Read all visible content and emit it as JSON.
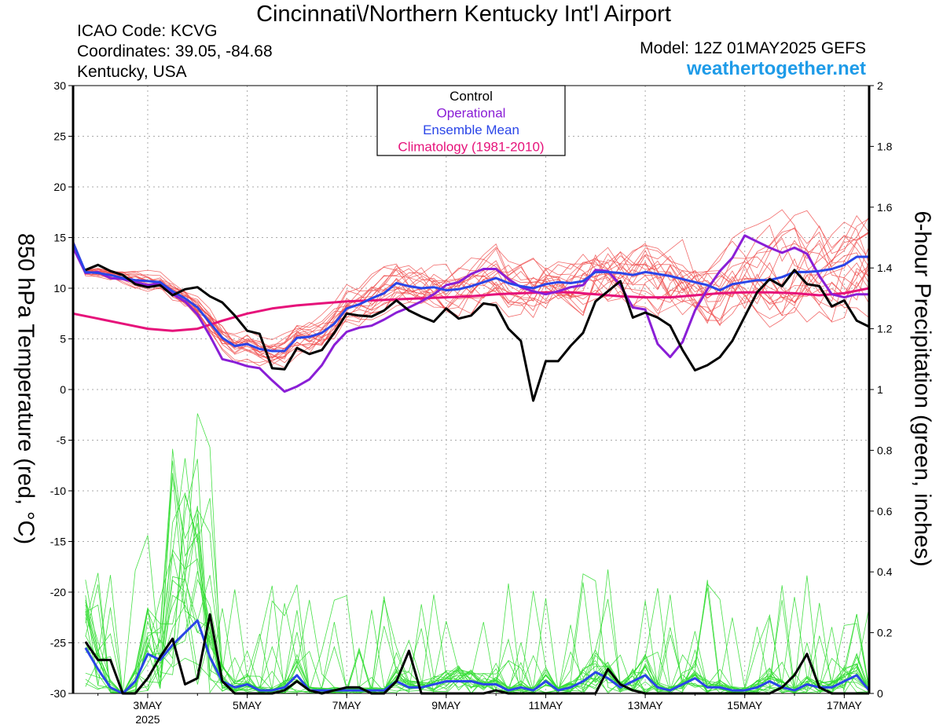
{
  "title": "Cincinnati\\/Northern Kentucky Int'l Airport",
  "info": {
    "icao": "ICAO Code: KCVG",
    "coords": "Coordinates: 39.05, -84.68",
    "region": "Kentucky, USA"
  },
  "model": "Model: 12Z 01MAY2025 GEFS",
  "site": "weathertogether.net",
  "chart_data": {
    "type": "line",
    "ylabel": "850 hPa Temperature (red, °C)",
    "y2label": "6-hour Precipitation (green, inches)",
    "ylim": [
      -30,
      30
    ],
    "y2lim": [
      0,
      2
    ],
    "yticks": [
      "30",
      "25",
      "20",
      "15",
      "10",
      "5",
      "0",
      "-5",
      "-10",
      "-15",
      "-20",
      "-25",
      "-30"
    ],
    "y2ticks": [
      "2",
      "1.8",
      "1.6",
      "1.4",
      "1.2",
      "1",
      "0.8",
      "0.6",
      "0.4",
      "0.2",
      "0"
    ],
    "xlim_days": [
      1.5,
      17.5
    ],
    "xticks": [
      {
        "day": 3,
        "label": "3MAY",
        "sub": "2025"
      },
      {
        "day": 5,
        "label": "5MAY",
        "sub": ""
      },
      {
        "day": 7,
        "label": "7MAY",
        "sub": ""
      },
      {
        "day": 9,
        "label": "9MAY",
        "sub": ""
      },
      {
        "day": 11,
        "label": "11MAY",
        "sub": ""
      },
      {
        "day": 13,
        "label": "13MAY",
        "sub": ""
      },
      {
        "day": 15,
        "label": "15MAY",
        "sub": ""
      },
      {
        "day": 17,
        "label": "17MAY",
        "sub": ""
      }
    ],
    "grid": true,
    "legend": {
      "placement": "top-center",
      "items": [
        {
          "label": "Control",
          "color": "#000000"
        },
        {
          "label": "Operational",
          "color": "#8a1ed6"
        },
        {
          "label": "Ensemble Mean",
          "color": "#2a45e8"
        },
        {
          "label": "Climatology (1981-2010)",
          "color": "#e6127a"
        }
      ]
    },
    "colors": {
      "member_temp": "#f05050",
      "member_precip": "#33dd33"
    },
    "series": [
      {
        "name": "Control",
        "kind": "temperature",
        "color": "#000000",
        "x": [
          1.75,
          2.0,
          2.25,
          2.5,
          2.75,
          3.0,
          3.25,
          3.5,
          3.75,
          4.0,
          4.25,
          4.5,
          4.75,
          5.0,
          5.25,
          5.5,
          5.75,
          6.0,
          6.25,
          6.5,
          6.75,
          7.0,
          7.25,
          7.5,
          7.75,
          8.0,
          8.25,
          8.5,
          8.75,
          9.0,
          9.25,
          9.5,
          9.75,
          10.0,
          10.25,
          10.5,
          10.75,
          11.0,
          11.25,
          11.5,
          11.75,
          12.0,
          12.25,
          12.5,
          12.75,
          13.0,
          13.25,
          13.5,
          13.75,
          14.0,
          14.25,
          14.5,
          14.75,
          15.0,
          15.25,
          15.5,
          15.75,
          16.0,
          16.25,
          16.5,
          16.75,
          17.0,
          17.25,
          17.5
        ],
        "y": [
          11.8,
          12.3,
          11.7,
          11.3,
          10.4,
          10.1,
          10.3,
          9.3,
          9.9,
          10.1,
          9.2,
          8.6,
          7.3,
          5.8,
          5.5,
          2.1,
          2.0,
          4.1,
          3.5,
          3.9,
          5.6,
          7.5,
          7.3,
          7.2,
          7.8,
          8.8,
          7.8,
          7.2,
          6.7,
          8.0,
          7.0,
          7.3,
          8.5,
          8.3,
          6.0,
          4.8,
          -1.1,
          2.8,
          2.8,
          4.3,
          5.6,
          8.7,
          9.7,
          10.7,
          7.1,
          7.6,
          7.1,
          6.3,
          3.9,
          1.9,
          2.4,
          3.2,
          4.8,
          7.2,
          9.6,
          10.9,
          10.2,
          11.8,
          10.4,
          10.2,
          8.2,
          8.8,
          6.8,
          6.2
        ]
      },
      {
        "name": "Operational",
        "kind": "temperature",
        "color": "#8a1ed6",
        "x": [
          1.5,
          1.75,
          2.0,
          2.25,
          2.5,
          2.75,
          3.0,
          3.25,
          3.5,
          3.75,
          4.0,
          4.25,
          4.5,
          4.75,
          5.0,
          5.25,
          5.5,
          5.75,
          6.0,
          6.25,
          6.5,
          6.75,
          7.0,
          7.25,
          7.5,
          7.75,
          8.0,
          8.25,
          8.5,
          8.75,
          9.0,
          9.25,
          9.5,
          9.75,
          10.0,
          10.25,
          10.5,
          10.75,
          11.0,
          11.25,
          11.5,
          11.75,
          12.0,
          12.25,
          12.5,
          12.75,
          13.0,
          13.25,
          13.5,
          13.75,
          14.0,
          14.25,
          14.5,
          14.75,
          15.0,
          15.25,
          15.5,
          15.75,
          16.0,
          16.25,
          16.5,
          16.75,
          17.0,
          17.25,
          17.5
        ],
        "y": [
          14.0,
          11.5,
          11.6,
          11.0,
          10.9,
          10.6,
          10.3,
          10.5,
          9.4,
          8.7,
          7.4,
          5.3,
          3.0,
          2.7,
          2.3,
          2.1,
          0.9,
          -0.2,
          0.3,
          1.0,
          2.4,
          4.4,
          5.7,
          6.1,
          6.3,
          6.9,
          7.6,
          8.1,
          8.7,
          9.4,
          10.3,
          10.6,
          11.4,
          11.9,
          11.9,
          10.9,
          10.1,
          9.7,
          9.4,
          9.7,
          10.1,
          10.3,
          11.8,
          11.7,
          10.3,
          8.1,
          7.9,
          4.5,
          3.2,
          4.7,
          7.8,
          9.9,
          11.7,
          13.0,
          15.2,
          14.6,
          14.0,
          13.5,
          14.0,
          13.4,
          11.2,
          9.4,
          9.1,
          9.4,
          9.4
        ]
      },
      {
        "name": "Ensemble Mean",
        "kind": "temperature",
        "color": "#2a45e8",
        "x": [
          1.5,
          1.75,
          2.0,
          2.25,
          2.5,
          2.75,
          3.0,
          3.25,
          3.5,
          3.75,
          4.0,
          4.25,
          4.5,
          4.75,
          5.0,
          5.25,
          5.5,
          5.75,
          6.0,
          6.25,
          6.5,
          6.75,
          7.0,
          7.25,
          7.5,
          7.75,
          8.0,
          8.25,
          8.5,
          8.75,
          9.0,
          9.25,
          9.5,
          9.75,
          10.0,
          10.25,
          10.5,
          10.75,
          11.0,
          11.25,
          11.5,
          11.75,
          12.0,
          12.25,
          12.5,
          12.75,
          13.0,
          13.25,
          13.5,
          13.75,
          14.0,
          14.25,
          14.5,
          14.75,
          15.0,
          15.25,
          15.5,
          15.75,
          16.0,
          16.25,
          16.5,
          16.75,
          17.0,
          17.25,
          17.5
        ],
        "y": [
          14.5,
          11.6,
          11.5,
          11.3,
          11.0,
          10.8,
          10.7,
          10.6,
          9.7,
          9.0,
          8.1,
          6.6,
          5.1,
          4.3,
          4.5,
          4.0,
          3.8,
          3.8,
          5.1,
          5.2,
          5.6,
          6.5,
          8.0,
          8.4,
          9.0,
          9.5,
          10.5,
          10.2,
          10.0,
          10.1,
          9.8,
          9.9,
          10.2,
          10.6,
          11.0,
          10.5,
          10.2,
          10.0,
          10.4,
          10.6,
          10.5,
          10.7,
          11.6,
          11.6,
          11.5,
          11.3,
          11.6,
          11.4,
          11.2,
          10.9,
          10.6,
          10.3,
          9.8,
          10.4,
          10.6,
          10.8,
          10.8,
          11.1,
          11.6,
          11.6,
          11.7,
          11.9,
          12.3,
          13.1,
          13.1
        ]
      },
      {
        "name": "Climatology (1981-2010)",
        "kind": "temperature",
        "color": "#e6127a",
        "x": [
          1.5,
          2.0,
          2.5,
          3.0,
          3.5,
          4.0,
          4.5,
          5.0,
          5.5,
          6.0,
          6.5,
          7.0,
          7.5,
          8.0,
          8.5,
          9.0,
          9.5,
          10.0,
          10.5,
          11.0,
          11.5,
          12.0,
          12.5,
          13.0,
          13.5,
          14.0,
          14.5,
          15.0,
          15.5,
          16.0,
          16.5,
          17.0,
          17.5
        ],
        "y": [
          7.5,
          7.0,
          6.5,
          6.0,
          5.8,
          6.0,
          6.8,
          7.5,
          8.0,
          8.3,
          8.5,
          8.7,
          8.8,
          8.9,
          9.0,
          9.1,
          9.2,
          9.4,
          9.5,
          9.6,
          9.6,
          9.4,
          9.2,
          9.1,
          9.1,
          9.3,
          9.5,
          9.6,
          9.6,
          9.5,
          9.3,
          9.5,
          10.0
        ]
      },
      {
        "name": "Control",
        "kind": "precipitation",
        "color": "#000000",
        "x": [
          1.75,
          2.0,
          2.25,
          2.5,
          2.75,
          3.0,
          3.25,
          3.5,
          3.75,
          4.0,
          4.25,
          4.5,
          4.75,
          5.0,
          5.25,
          5.5,
          5.75,
          6.0,
          6.25,
          6.5,
          6.75,
          7.0,
          7.25,
          7.5,
          7.75,
          8.0,
          8.25,
          8.5,
          8.75,
          9.0,
          9.25,
          9.5,
          9.75,
          10.0,
          10.25,
          10.5,
          10.75,
          11.0,
          11.25,
          11.5,
          11.75,
          12.0,
          12.25,
          12.5,
          12.75,
          13.0,
          13.25,
          13.5,
          13.75,
          14.0,
          14.25,
          14.5,
          14.75,
          15.0,
          15.25,
          15.5,
          15.75,
          16.0,
          16.25,
          16.5,
          16.75,
          17.0,
          17.25,
          17.5
        ],
        "y": [
          0.17,
          0.11,
          0.11,
          0.0,
          0.0,
          0.05,
          0.12,
          0.18,
          0.03,
          0.05,
          0.26,
          0.04,
          0.0,
          0.0,
          0.0,
          0.0,
          0.01,
          0.04,
          0.01,
          0.0,
          0.01,
          0.02,
          0.02,
          0.0,
          0.0,
          0.04,
          0.14,
          0.0,
          0.0,
          0.0,
          0.0,
          0.0,
          0.0,
          0.01,
          0.0,
          0.0,
          0.0,
          0.0,
          0.0,
          0.0,
          0.0,
          0.0,
          0.08,
          0.03,
          0.01,
          0.0,
          0.0,
          0.0,
          0.0,
          0.0,
          0.0,
          0.0,
          0.0,
          0.0,
          0.0,
          0.0,
          0.02,
          0.06,
          0.13,
          0.02,
          0.0,
          0.0,
          0.0,
          0.0
        ]
      },
      {
        "name": "Ensemble Mean",
        "kind": "precipitation",
        "color": "#2a45e8",
        "x": [
          1.75,
          2.0,
          2.25,
          2.5,
          2.75,
          3.0,
          3.25,
          3.5,
          3.75,
          4.0,
          4.25,
          4.5,
          4.75,
          5.0,
          5.25,
          5.5,
          5.75,
          6.0,
          6.25,
          6.5,
          6.75,
          7.0,
          7.25,
          7.5,
          7.75,
          8.0,
          8.25,
          8.5,
          8.75,
          9.0,
          9.25,
          9.5,
          9.75,
          10.0,
          10.25,
          10.5,
          10.75,
          11.0,
          11.25,
          11.5,
          11.75,
          12.0,
          12.25,
          12.5,
          12.75,
          13.0,
          13.25,
          13.5,
          13.75,
          14.0,
          14.25,
          14.5,
          14.75,
          15.0,
          15.25,
          15.5,
          15.75,
          16.0,
          16.25,
          16.5,
          16.75,
          17.0,
          17.25,
          17.5
        ],
        "y": [
          0.15,
          0.08,
          0.02,
          0.0,
          0.04,
          0.13,
          0.11,
          0.16,
          0.2,
          0.24,
          0.12,
          0.04,
          0.02,
          0.03,
          0.01,
          0.01,
          0.02,
          0.06,
          0.01,
          0.01,
          0.01,
          0.01,
          0.01,
          0.01,
          0.01,
          0.04,
          0.02,
          0.02,
          0.03,
          0.04,
          0.04,
          0.04,
          0.03,
          0.03,
          0.01,
          0.02,
          0.01,
          0.04,
          0.01,
          0.02,
          0.04,
          0.07,
          0.05,
          0.02,
          0.04,
          0.06,
          0.02,
          0.01,
          0.03,
          0.05,
          0.02,
          0.02,
          0.01,
          0.01,
          0.02,
          0.04,
          0.02,
          0.01,
          0.03,
          0.02,
          0.02,
          0.04,
          0.06,
          0.01
        ]
      }
    ]
  }
}
